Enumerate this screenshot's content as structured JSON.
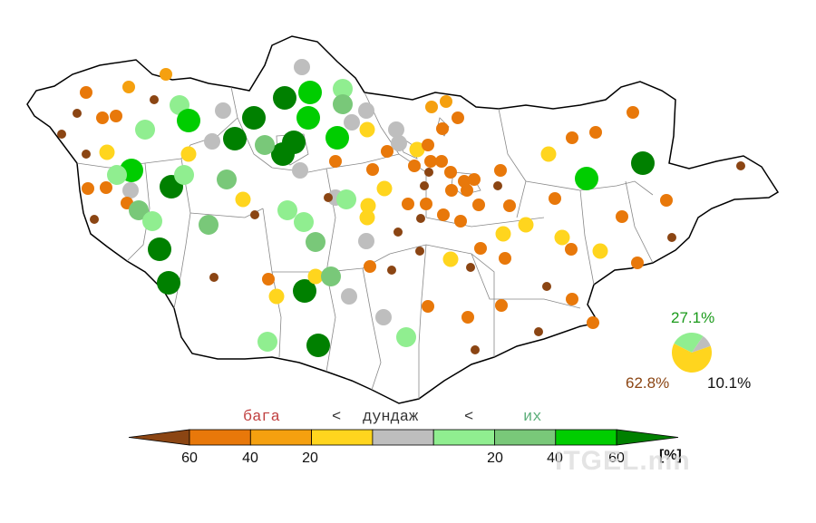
{
  "colors": {
    "much_below": "#8B4513",
    "below_40": "#E8780A",
    "below_20": "#F5A00F",
    "below_0": "#FFD51E",
    "normal": "#BEBEBE",
    "above_0": "#90EE90",
    "above_20": "#79C879",
    "above_40": "#00CD00",
    "much_above": "#008000"
  },
  "pie": {
    "above_label": "27.1%",
    "below_label": "62.8%",
    "normal_label": "10.1%",
    "above_pct": 27.1,
    "below_pct": 62.8,
    "normal_pct": 10.1
  },
  "legend": {
    "low_word": "бага",
    "less_than_1": "<",
    "normal_word": "дундаж",
    "less_than_2": "<",
    "high_word": "их",
    "ticks": [
      "60",
      "40",
      "20",
      "20",
      "40",
      "60"
    ],
    "unit": "[%]"
  },
  "watermark": "ITGEL.mn"
}
